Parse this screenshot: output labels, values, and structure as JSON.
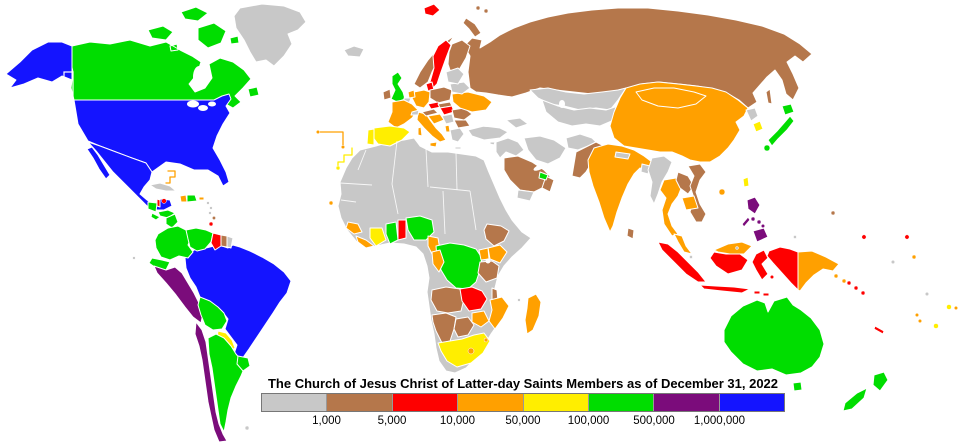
{
  "legend": {
    "title": "The Church of Jesus Christ of Latter-day Saints Members as of December 31, 2022",
    "tick_labels": [
      "1,000",
      "5,000",
      "10,000",
      "50,000",
      "100,000",
      "500,000",
      "1,000,000"
    ],
    "categories": [
      {
        "key": "under-1000",
        "color": "#c8c8c8"
      },
      {
        "key": "1000-5000",
        "color": "#b5774b"
      },
      {
        "key": "5000-10000",
        "color": "#fe0000"
      },
      {
        "key": "10000-50000",
        "color": "#ffa000"
      },
      {
        "key": "50000-100000",
        "color": "#ffee00"
      },
      {
        "key": "100000-500000",
        "color": "#00dd00"
      },
      {
        "key": "500000-1000000",
        "color": "#7b0c7b"
      },
      {
        "key": "over-1000000",
        "color": "#1414ff"
      }
    ]
  },
  "map": {
    "ocean_color": "#ffffff",
    "border_color": "#ffffff",
    "countries": {
      "greenland": "under-1000",
      "canada": "100000-500000",
      "usa": "over-1000000",
      "mexico": "over-1000000",
      "guatemala": "100000-500000",
      "belize": "5000-10000",
      "honduras": "100000-500000",
      "el-salvador": "100000-500000",
      "nicaragua": "100000-500000",
      "costa-rica": "50000-100000",
      "panama": "50000-100000",
      "cuba": "under-1000",
      "jamaica": "5000-10000",
      "haiti": "10000-50000",
      "dominican-republic": "100000-500000",
      "puerto-rico": "10000-50000",
      "bahamas": "10000-50000",
      "lesser-antilles": "under-1000",
      "barbados": "1000-5000",
      "trinidad-and-tobago": "5000-10000",
      "colombia": "100000-500000",
      "venezuela": "100000-500000",
      "guyana": "5000-10000",
      "suriname": "1000-5000",
      "french-guiana": "under-1000",
      "ecuador": "100000-500000",
      "peru": "500000-1000000",
      "brazil": "over-1000000",
      "bolivia": "100000-500000",
      "paraguay": "50000-100000",
      "chile": "500000-1000000",
      "argentina": "100000-500000",
      "uruguay": "100000-500000",
      "falkland-islands": "under-1000",
      "galapagos": "under-1000",
      "iceland": "under-1000",
      "uk": "100000-500000",
      "ireland": "1000-5000",
      "norway": "1000-5000",
      "sweden": "5000-10000",
      "finland": "1000-5000",
      "denmark": "5000-10000",
      "germany": "10000-50000",
      "netherlands": "10000-50000",
      "belgium": "under-1000",
      "france": "10000-50000",
      "spain": "50000-100000",
      "portugal": "50000-100000",
      "italy": "10000-50000",
      "switzerland": "under-1000",
      "austria": "1000-5000",
      "czechia": "5000-10000",
      "poland": "1000-5000",
      "slovakia": "1000-5000",
      "hungary": "5000-10000",
      "croatia": "10000-50000",
      "serbia": "under-1000",
      "albania": "10000-50000",
      "greece": "under-1000",
      "bulgaria": "1000-5000",
      "romania": "1000-5000",
      "ukraine": "10000-50000",
      "belarus": "under-1000",
      "baltics": "under-1000",
      "svalbard": "5000-10000",
      "russia": "1000-5000",
      "turkey": "under-1000",
      "cyprus": "under-1000",
      "levant-iraq": "under-1000",
      "iran": "under-1000",
      "caucasus": "under-1000",
      "saudi-arabia": "1000-5000",
      "yemen": "under-1000",
      "oman": "1000-5000",
      "uae": "100000-500000",
      "kazakhstan": "under-1000",
      "central-asia": "under-1000",
      "afghanistan": "under-1000",
      "pakistan": "1000-5000",
      "india": "10000-50000",
      "nepal": "under-1000",
      "bangladesh": "under-1000",
      "sri-lanka": "1000-5000",
      "myanmar": "under-1000",
      "thailand": "10000-50000",
      "laos": "1000-5000",
      "vietnam": "1000-5000",
      "cambodia": "10000-50000",
      "malaysia": "10000-50000",
      "singapore": "under-1000",
      "brunei": "under-1000",
      "indonesia": "5000-10000",
      "philippines": "500000-1000000",
      "china": "10000-50000",
      "mongolia": "10000-50000",
      "north-korea": "under-1000",
      "south-korea": "50000-100000",
      "japan": "100000-500000",
      "taiwan": "50000-100000",
      "africa-gray-base": "under-1000",
      "guinea": "10000-50000",
      "sierra-leone-liberia": "10000-50000",
      "ivory-coast": "50000-100000",
      "ghana": "100000-500000",
      "togo-benin": "5000-10000",
      "nigeria": "100000-500000",
      "cameroon": "10000-50000",
      "congo": "10000-50000",
      "drc": "100000-500000",
      "ethiopia": "1000-5000",
      "kenya": "10000-50000",
      "uganda": "10000-50000",
      "tanzania": "1000-5000",
      "angola": "1000-5000",
      "zambia": "5000-10000",
      "malawi": "1000-5000",
      "mozambique": "10000-50000",
      "zimbabwe": "10000-50000",
      "namibia": "1000-5000",
      "botswana": "1000-5000",
      "south-africa": "50000-100000",
      "lesotho": "10000-50000",
      "eswatini": "10000-50000",
      "madagascar": "10000-50000",
      "comoros": "under-1000",
      "azores": "10000-50000",
      "canary-islands": "50000-100000",
      "cape-verde": "10000-50000",
      "australia": "100000-500000",
      "new-zealand": "100000-500000",
      "papua-new-guinea": "10000-50000",
      "solomon-islands": "5000-10000",
      "vanuatu": "10000-50000",
      "new-caledonia": "5000-10000",
      "fiji": "50000-100000",
      "samoa": "50000-100000",
      "american-samoa": "10000-50000",
      "palau": "under-1000",
      "marshall-islands": "1000-5000",
      "pacific-1": "5000-10000",
      "pacific-2": "5000-10000",
      "pacific-3": "10000-50000",
      "pacific-4": "under-1000",
      "pacific-5": "under-1000"
    }
  }
}
